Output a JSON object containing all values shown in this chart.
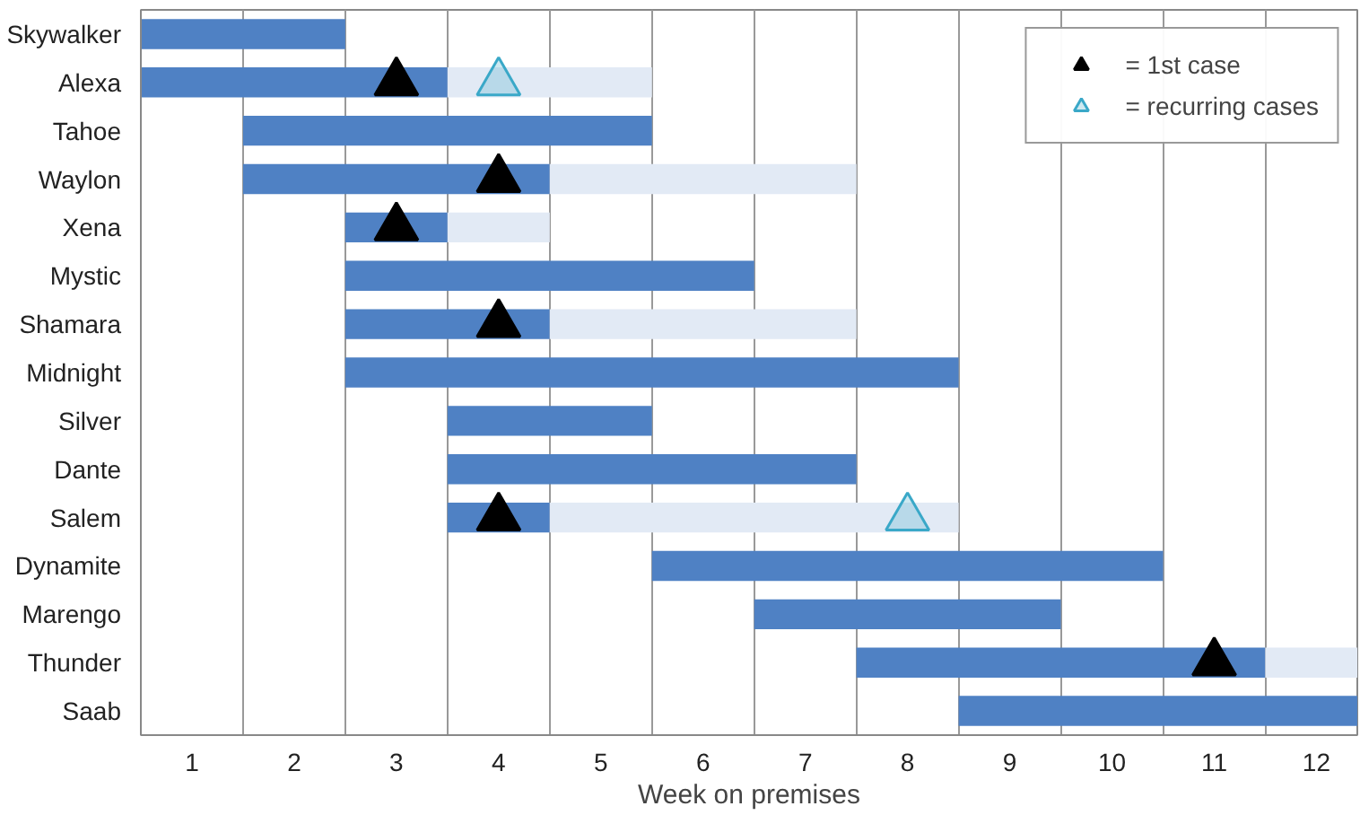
{
  "chart_data": {
    "type": "bar",
    "orientation": "horizontal",
    "xlabel": "Week on premises",
    "categories": [
      "Skywalker",
      "Alexa",
      "Tahoe",
      "Waylon",
      "Xena",
      "Mystic",
      "Shamara",
      "Midnight",
      "Silver",
      "Dante",
      "Salem",
      "Dynamite",
      "Marengo",
      "Thunder",
      "Saab"
    ],
    "series": [
      {
        "color": "#4f81c4",
        "base": [
          0.5,
          0.5,
          1.5,
          1.5,
          2.5,
          2.5,
          2.5,
          2.5,
          3.5,
          3.5,
          3.5,
          5.5,
          6.5,
          7.5,
          8.5
        ],
        "values": [
          2,
          3,
          4,
          3,
          1,
          4,
          2,
          6,
          2,
          4,
          1,
          5,
          3,
          4,
          3.9
        ]
      },
      {
        "color": "#e2eaf5",
        "base": [
          null,
          3.5,
          null,
          4.5,
          3.5,
          null,
          4.5,
          null,
          null,
          null,
          4.5,
          null,
          null,
          11.5,
          null
        ],
        "values": [
          null,
          2,
          null,
          3,
          1,
          null,
          3,
          null,
          null,
          null,
          4,
          null,
          null,
          0.9,
          null
        ]
      },
      {
        "name": "= 1st case",
        "type": "scatter",
        "marker": "triangle",
        "color": "#000000",
        "values": [
          null,
          3,
          null,
          4,
          3,
          null,
          4,
          null,
          null,
          null,
          4,
          null,
          null,
          11,
          null
        ]
      },
      {
        "name": "= recurring cases",
        "type": "scatter",
        "marker": "triangle",
        "color": "#3aa8c8",
        "values": [
          null,
          4,
          null,
          null,
          null,
          null,
          null,
          null,
          null,
          null,
          8,
          null,
          null,
          null,
          null
        ]
      }
    ],
    "xlim": [
      0.5,
      12.4
    ],
    "xticks": [
      1,
      2,
      3,
      4,
      5,
      6,
      7,
      8,
      9,
      10,
      11,
      12,
      {
        "value": 1.5,
        "label": null
      },
      {
        "value": 2.5,
        "label": null
      },
      {
        "value": 3.5,
        "label": null
      },
      {
        "value": 4.5,
        "label": null
      },
      {
        "value": 5.5,
        "label": null
      },
      {
        "value": 6.5,
        "label": null
      },
      {
        "value": 7.5,
        "label": null
      },
      {
        "value": 8.5,
        "label": null
      },
      {
        "value": 9.5,
        "label": null
      },
      {
        "value": 10.5,
        "label": null
      },
      {
        "value": 11.5,
        "label": null
      }
    ],
    "grid": "x",
    "legend": "top right"
  }
}
